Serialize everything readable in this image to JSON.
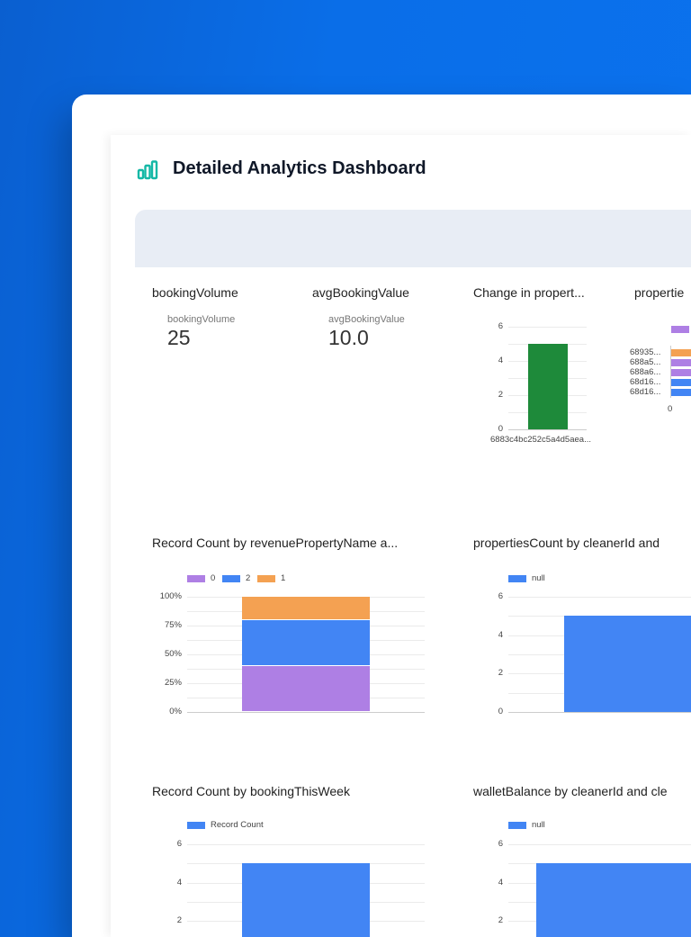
{
  "header": {
    "title": "Detailed Analytics Dashboard",
    "icon": "bar-chart-icon"
  },
  "kpis": [
    {
      "title": "bookingVolume",
      "label": "bookingVolume",
      "value": "25"
    },
    {
      "title": "avgBookingValue",
      "label": "avgBookingValue",
      "value": "10.0"
    }
  ],
  "colors": {
    "green": "#1e8a3a",
    "purple": "#ae7fe4",
    "blue": "#4285f4",
    "orange": "#f4a152",
    "teal": "#14b8a6"
  },
  "chart_data": [
    {
      "type": "bar",
      "title": "Change in propert...",
      "categories": [
        "6883c4bc252c5a4d5aea..."
      ],
      "values": [
        5
      ],
      "yticks": [
        "0",
        "2",
        "4",
        "6"
      ],
      "ylim": [
        0,
        6
      ],
      "color": "#1e8a3a"
    },
    {
      "type": "bar",
      "orientation": "horizontal",
      "title": "propertie",
      "categories": [
        "68935...",
        "688a5...",
        "688a6...",
        "68d16...",
        "68d16..."
      ],
      "colors": [
        "#f4a152",
        "#ae7fe4",
        "#ae7fe4",
        "#4285f4",
        "#4285f4"
      ],
      "xticks": [
        "0"
      ]
    },
    {
      "type": "bar",
      "stacked": "percent",
      "title": "Record Count by revenuePropertyName a...",
      "legend": [
        "0",
        "2",
        "1"
      ],
      "series": [
        {
          "name": "0",
          "values": [
            40
          ],
          "color": "#ae7fe4"
        },
        {
          "name": "2",
          "values": [
            40
          ],
          "color": "#4285f4"
        },
        {
          "name": "1",
          "values": [
            20
          ],
          "color": "#f4a152"
        }
      ],
      "yticks": [
        "0%",
        "25%",
        "50%",
        "75%",
        "100%"
      ]
    },
    {
      "type": "bar",
      "title": "propertiesCount by cleanerId and",
      "legend": [
        "null"
      ],
      "values": [
        5
      ],
      "yticks": [
        "0",
        "2",
        "4",
        "6"
      ],
      "ylim": [
        0,
        6
      ]
    },
    {
      "type": "bar",
      "title": "Record Count by bookingThisWeek",
      "legend": [
        "Record Count"
      ],
      "values": [
        5
      ],
      "yticks": [
        "2",
        "4",
        "6"
      ],
      "ylim": [
        0,
        6
      ]
    },
    {
      "type": "bar",
      "title": "walletBalance by cleanerId and cle",
      "legend": [
        "null"
      ],
      "values": [
        5
      ],
      "yticks": [
        "2",
        "4",
        "6"
      ],
      "ylim": [
        0,
        6
      ]
    }
  ]
}
